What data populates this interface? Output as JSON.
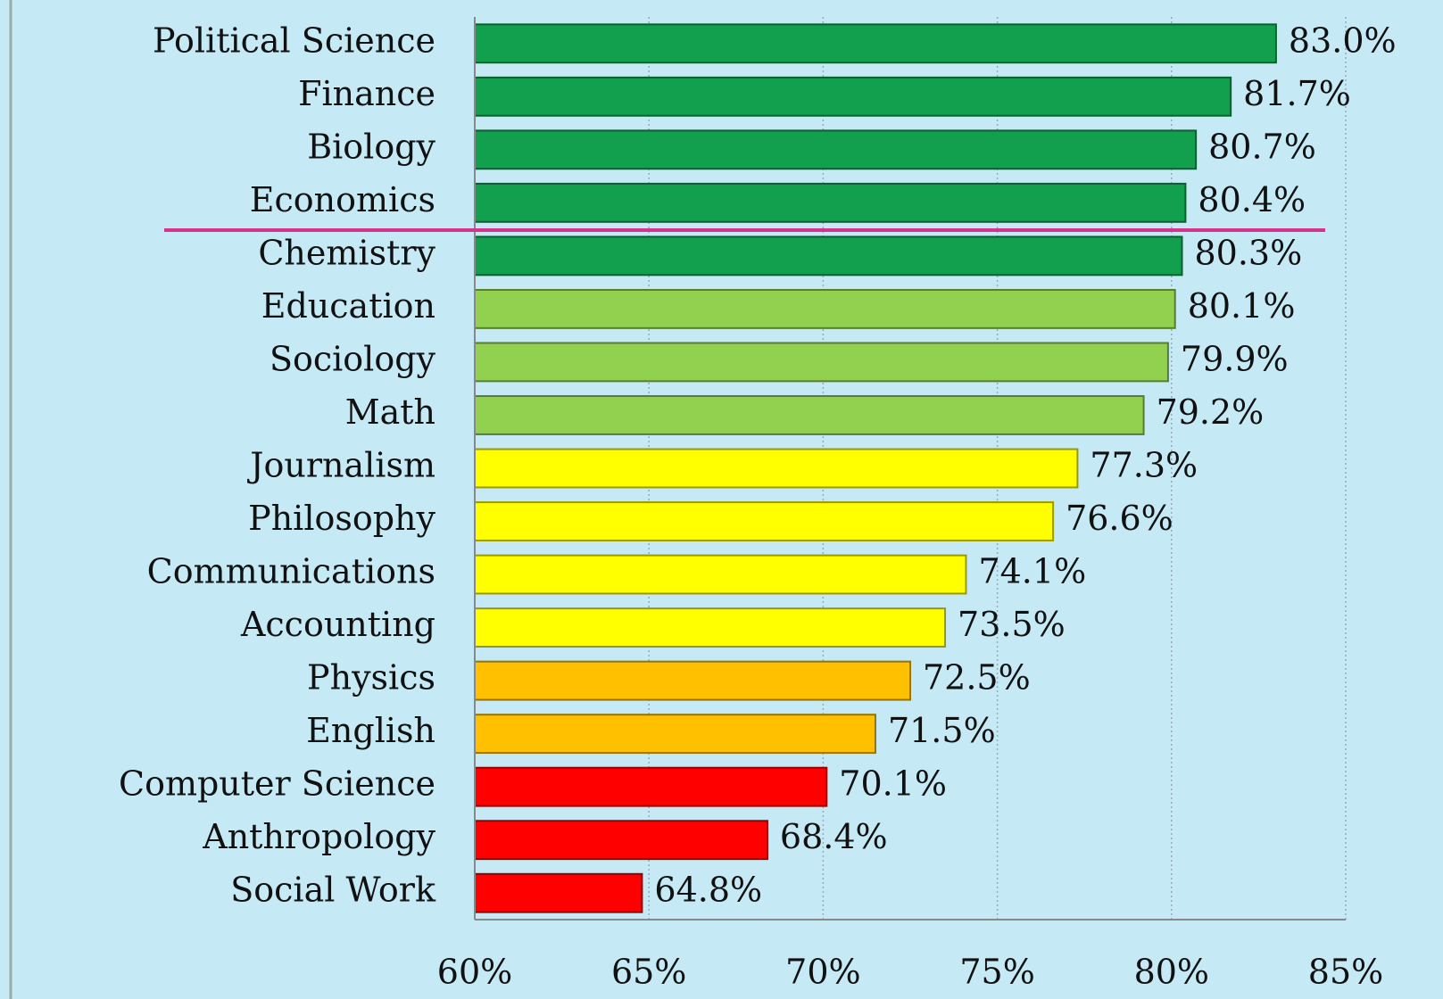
{
  "chart_data": {
    "type": "hbar",
    "categories": [
      "Political Science",
      "Finance",
      "Biology",
      "Economics",
      "Chemistry",
      "Education",
      "Sociology",
      "Math",
      "Journalism",
      "Philosophy",
      "Communications",
      "Accounting",
      "Physics",
      "English",
      "Computer Science",
      "Anthropology",
      "Social Work"
    ],
    "values": [
      83.0,
      81.7,
      80.7,
      80.4,
      80.3,
      80.1,
      79.9,
      79.2,
      77.3,
      76.6,
      74.1,
      73.5,
      72.5,
      71.5,
      70.1,
      68.4,
      64.8
    ],
    "value_labels": [
      "83.0%",
      "81.7%",
      "80.7%",
      "80.4%",
      "80.3%",
      "80.1%",
      "79.9%",
      "79.2%",
      "77.3%",
      "76.6%",
      "74.1%",
      "73.5%",
      "72.5%",
      "71.5%",
      "70.1%",
      "68.4%",
      "64.8%"
    ],
    "colors": [
      "#12a04e",
      "#12a04e",
      "#12a04e",
      "#12a04e",
      "#12a04e",
      "#92d050",
      "#92d050",
      "#92d050",
      "#ffff00",
      "#ffff00",
      "#ffff00",
      "#ffff00",
      "#ffc000",
      "#ffc000",
      "#ff0000",
      "#ff0000",
      "#ff0000"
    ],
    "xlim": [
      60,
      85
    ],
    "xticks": [
      {
        "value": 60,
        "label": "60%"
      },
      {
        "value": 65,
        "label": "65%"
      },
      {
        "value": 70,
        "label": "70%"
      },
      {
        "value": 75,
        "label": "75%"
      },
      {
        "value": 80,
        "label": "80%"
      },
      {
        "value": 85,
        "label": "85%"
      }
    ],
    "grid": true
  }
}
